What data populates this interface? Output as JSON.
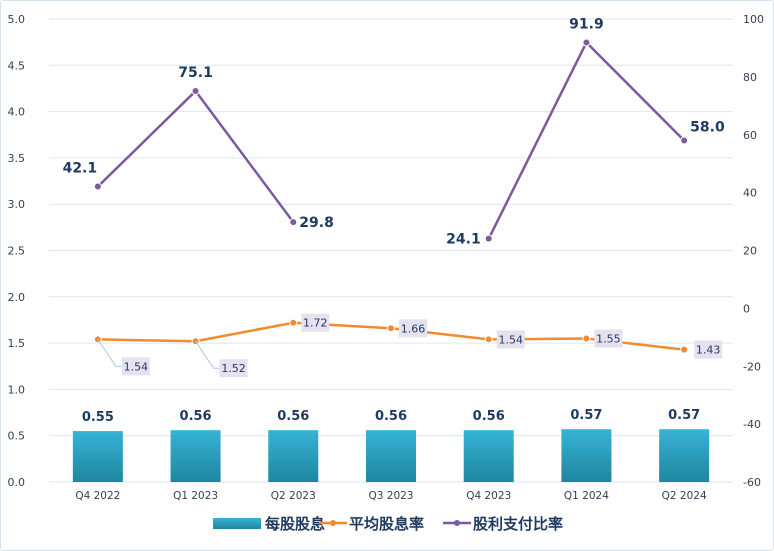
{
  "chart_data": {
    "type": "bar+line",
    "categories": [
      "Q4 2022",
      "Q1 2023",
      "Q2 2023",
      "Q3 2023",
      "Q4 2023",
      "Q1 2024",
      "Q2 2024"
    ],
    "series": [
      {
        "name": "每股股息",
        "type": "bar",
        "axis": "left",
        "color": "#2aa6c6",
        "values": [
          0.55,
          0.56,
          0.56,
          0.56,
          0.56,
          0.57,
          0.57
        ],
        "labels": [
          "0.55",
          "0.56",
          "0.56",
          "0.56",
          "0.56",
          "0.57",
          "0.57"
        ]
      },
      {
        "name": "平均股息率",
        "type": "line",
        "axis": "left",
        "color": "#f28a2e",
        "values": [
          1.54,
          1.52,
          1.72,
          1.66,
          1.54,
          1.55,
          1.43
        ],
        "labels": [
          "1.54",
          "1.52",
          "1.72",
          "1.66",
          "1.54",
          "1.55",
          "1.43"
        ]
      },
      {
        "name": "股利支付比率",
        "type": "line",
        "axis": "right",
        "color": "#7a5aa0",
        "values": [
          42.1,
          75.1,
          29.8,
          null,
          24.1,
          91.9,
          58.0
        ],
        "labels": [
          "42.1",
          "75.1",
          "29.8",
          "",
          "24.1",
          "91.9",
          "58.0"
        ]
      }
    ],
    "left_axis": {
      "min": 0,
      "max": 5,
      "step": 0.5,
      "ticks": [
        "0.0",
        "0.5",
        "1.0",
        "1.5",
        "2.0",
        "2.5",
        "3.0",
        "3.5",
        "4.0",
        "4.5",
        "5.0"
      ]
    },
    "right_axis": {
      "min": -60,
      "max": 100,
      "step": 20,
      "ticks": [
        "-60",
        "-40",
        "-20",
        "0",
        "20",
        "40",
        "60",
        "80",
        "100"
      ]
    },
    "grid": true,
    "legend": "bottom"
  }
}
